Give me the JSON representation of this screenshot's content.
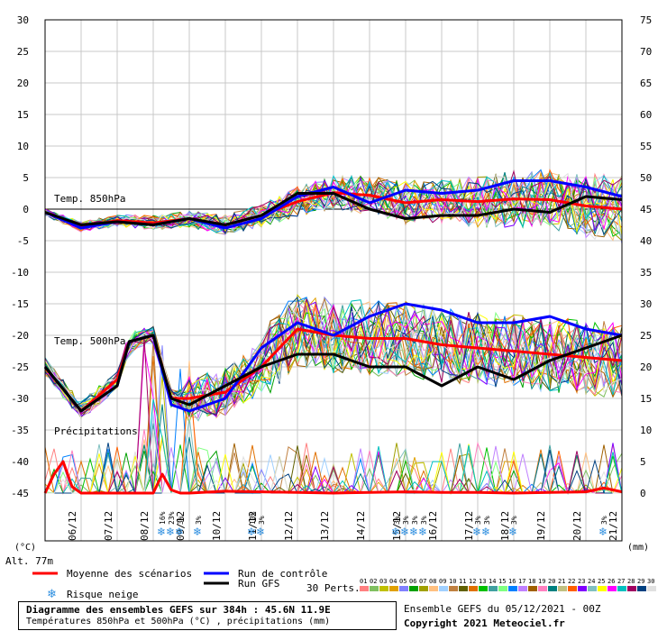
{
  "chart_data": {
    "type": "line",
    "title": "Diagramme des ensembles GEFS sur 384h : 45.6N 11.9E",
    "subtitle": "Températures 850hPa et 500hPa (°C) , précipitations (mm)",
    "left_axis": {
      "unit": "(°C)",
      "ylim": [
        -45,
        30
      ],
      "ticks": [
        30,
        25,
        20,
        15,
        10,
        5,
        0,
        -5,
        -10,
        -15,
        -20,
        -25,
        -30,
        -35,
        -40,
        -45
      ]
    },
    "right_axis": {
      "unit": "(mm)",
      "ylim": [
        0,
        75
      ],
      "ticks": [
        75,
        70,
        65,
        60,
        55,
        50,
        45,
        40,
        35,
        30,
        25,
        20,
        15,
        10,
        5,
        0
      ]
    },
    "x_ticks": [
      "06/12",
      "07/12",
      "08/12",
      "09/12",
      "10/12",
      "11/12",
      "12/12",
      "13/12",
      "14/12",
      "15/12",
      "16/12",
      "17/12",
      "18/12",
      "19/12",
      "20/12",
      "21/12"
    ],
    "x_range_hours": [
      0,
      384
    ],
    "panel_labels": {
      "t850": "Temp. 850hPa",
      "t500": "Temp. 500hPa",
      "precip": "Précipitations"
    },
    "series": [
      {
        "name": "Moyenne des scénarios",
        "color": "#ff0000",
        "panel": "t850",
        "x": [
          0,
          24,
          48,
          72,
          96,
          120,
          144,
          168,
          192,
          216,
          240,
          264,
          288,
          312,
          336,
          360,
          384
        ],
        "values": [
          -0.5,
          -2.8,
          -1.8,
          -2.2,
          -1.5,
          -2.5,
          -1.0,
          1.2,
          2.6,
          2.2,
          1.0,
          1.5,
          1.2,
          1.6,
          1.5,
          0.5,
          0.0
        ]
      },
      {
        "name": "Run de contrôle",
        "color": "#0000ff",
        "panel": "t850",
        "x": [
          0,
          24,
          48,
          72,
          96,
          120,
          144,
          168,
          192,
          216,
          240,
          264,
          288,
          312,
          336,
          360,
          384
        ],
        "values": [
          -0.5,
          -3.0,
          -2.0,
          -2.5,
          -1.5,
          -3.0,
          -1.5,
          2.0,
          3.5,
          1.0,
          3.0,
          2.5,
          3.0,
          4.5,
          4.5,
          3.5,
          2.0
        ]
      },
      {
        "name": "Run GFS",
        "color": "#000000",
        "panel": "t850",
        "x": [
          0,
          24,
          48,
          72,
          96,
          120,
          144,
          168,
          192,
          216,
          240,
          264,
          288,
          312,
          336,
          360,
          384
        ],
        "values": [
          -0.5,
          -2.5,
          -2.0,
          -2.5,
          -1.5,
          -2.5,
          -1.0,
          2.5,
          2.5,
          0.0,
          -1.5,
          -1.0,
          -1.0,
          0.0,
          -0.5,
          2.0,
          1.5
        ]
      },
      {
        "name": "Moyenne des scénarios",
        "color": "#ff0000",
        "panel": "t500",
        "x": [
          0,
          24,
          48,
          56,
          72,
          84,
          96,
          120,
          144,
          168,
          192,
          216,
          240,
          264,
          288,
          312,
          336,
          360,
          384
        ],
        "values": [
          -25,
          -32,
          -27,
          -21,
          -20,
          -30,
          -30,
          -29,
          -25,
          -19,
          -20,
          -20.5,
          -20.5,
          -21.5,
          -22,
          -22.5,
          -23,
          -23.5,
          -24
        ]
      },
      {
        "name": "Run de contrôle",
        "color": "#0000ff",
        "panel": "t500",
        "x": [
          0,
          24,
          48,
          56,
          72,
          84,
          96,
          120,
          144,
          168,
          192,
          216,
          240,
          264,
          288,
          312,
          336,
          360,
          384
        ],
        "values": [
          -25,
          -32,
          -28,
          -21,
          -20,
          -31,
          -32,
          -30,
          -22,
          -18,
          -20,
          -17,
          -15,
          -16,
          -18,
          -18,
          -17,
          -19,
          -20
        ]
      },
      {
        "name": "Run GFS",
        "color": "#000000",
        "panel": "t500",
        "x": [
          0,
          24,
          48,
          56,
          72,
          84,
          96,
          120,
          144,
          168,
          192,
          216,
          240,
          264,
          288,
          312,
          336,
          360,
          384
        ],
        "values": [
          -25,
          -32,
          -28,
          -21,
          -20,
          -30,
          -31,
          -28,
          -25,
          -23,
          -23,
          -25,
          -25,
          -28,
          -25,
          -27,
          -24,
          -22,
          -20
        ]
      },
      {
        "name": "Moyenne des scénarios",
        "color": "#ff0000",
        "panel": "precip",
        "x": [
          0,
          6,
          12,
          18,
          24,
          48,
          60,
          72,
          78,
          84,
          90,
          96,
          120,
          144,
          168,
          192,
          216,
          240,
          264,
          288,
          312,
          336,
          360,
          372,
          384
        ],
        "values": [
          0,
          3,
          5,
          1,
          0,
          0,
          0,
          0,
          3,
          0.5,
          0,
          0,
          0.3,
          0.2,
          0.1,
          0,
          0.1,
          0.2,
          0.1,
          0.1,
          0,
          0.1,
          0.2,
          0.8,
          0.2
        ]
      }
    ],
    "snow_risk": [
      {
        "hour": 78,
        "label": "16%"
      },
      {
        "hour": 84,
        "label": "23%"
      },
      {
        "hour": 90,
        "label": "3%"
      },
      {
        "hour": 102,
        "label": "3%"
      },
      {
        "hour": 138,
        "label": "10%"
      },
      {
        "hour": 144,
        "label": "3%"
      },
      {
        "hour": 234,
        "label": "3%"
      },
      {
        "hour": 240,
        "label": "3%"
      },
      {
        "hour": 246,
        "label": "3%"
      },
      {
        "hour": 252,
        "label": "3%"
      },
      {
        "hour": 288,
        "label": "3%"
      },
      {
        "hour": 294,
        "label": "3%"
      },
      {
        "hour": 312,
        "label": "3%"
      },
      {
        "hour": 372,
        "label": "3%"
      }
    ],
    "grid": true
  },
  "altitude": "Alt. 77m",
  "legend": {
    "mean": "Moyenne des scénarios",
    "control": "Run de contrôle",
    "gfs": "Run GFS",
    "snow": "Risque neige",
    "perts_label": "30 Perts.",
    "perts": [
      "01",
      "02",
      "03",
      "04",
      "05",
      "06",
      "07",
      "08",
      "09",
      "10",
      "11",
      "12",
      "13",
      "14",
      "15",
      "16",
      "17",
      "18",
      "19",
      "20",
      "21",
      "22",
      "23",
      "24",
      "25",
      "26",
      "27",
      "28",
      "29",
      "30"
    ],
    "pert_colors": [
      "#ff8080",
      "#80c060",
      "#c0c000",
      "#e0a000",
      "#8080ff",
      "#00a000",
      "#a0a000",
      "#ffc080",
      "#a0d0ff",
      "#c08040",
      "#606000",
      "#e07000",
      "#00c000",
      "#40a0a0",
      "#80ff80",
      "#0080ff",
      "#c080ff",
      "#a06000",
      "#ff80c0",
      "#008080",
      "#c0c080",
      "#ff6000",
      "#8000ff",
      "#80c0c0",
      "#ffff00",
      "#ff00ff",
      "#00c0c0",
      "#a00060",
      "#004080",
      "#e0e0e0"
    ]
  },
  "footer": {
    "title": "Diagramme des ensembles GEFS sur 384h : 45.6N 11.9E",
    "subtitle": "Températures 850hPa et 500hPa (°C) , précipitations (mm)",
    "run": "Ensemble GEFS du 05/12/2021 - 00Z",
    "copyright": "Copyright 2021 Meteociel.fr"
  }
}
